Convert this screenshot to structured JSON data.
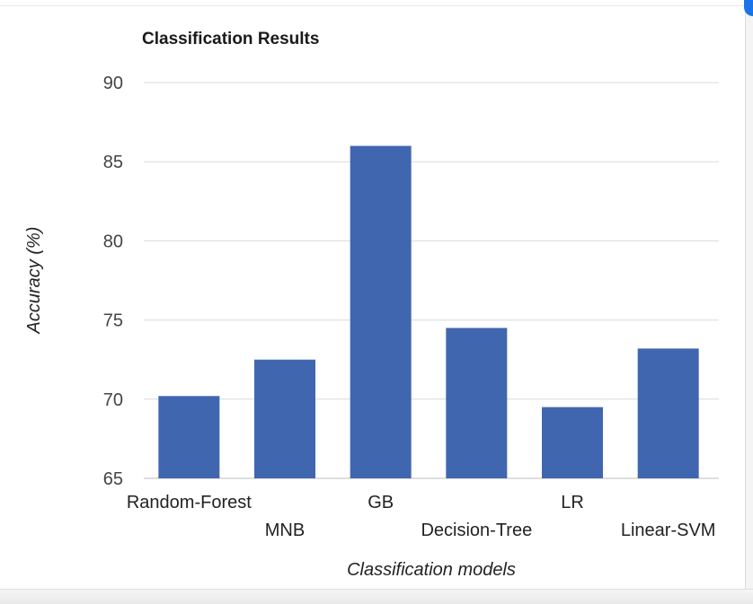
{
  "chart_data": {
    "type": "bar",
    "title": "Classification Results",
    "xlabel": "Classification models",
    "ylabel": "Accuracy (%)",
    "categories": [
      "Random-Forest",
      "MNB",
      "GB",
      "Decision-Tree",
      "LR",
      "Linear-SVM"
    ],
    "values": [
      70.2,
      72.5,
      86.0,
      74.5,
      69.5,
      73.2
    ],
    "ylim": [
      65,
      90
    ],
    "yticks": [
      65,
      70,
      75,
      80,
      85,
      90
    ],
    "grid": true,
    "legend": "none",
    "bar_color": "#4166b0",
    "grid_color": "#d9d9d9"
  }
}
